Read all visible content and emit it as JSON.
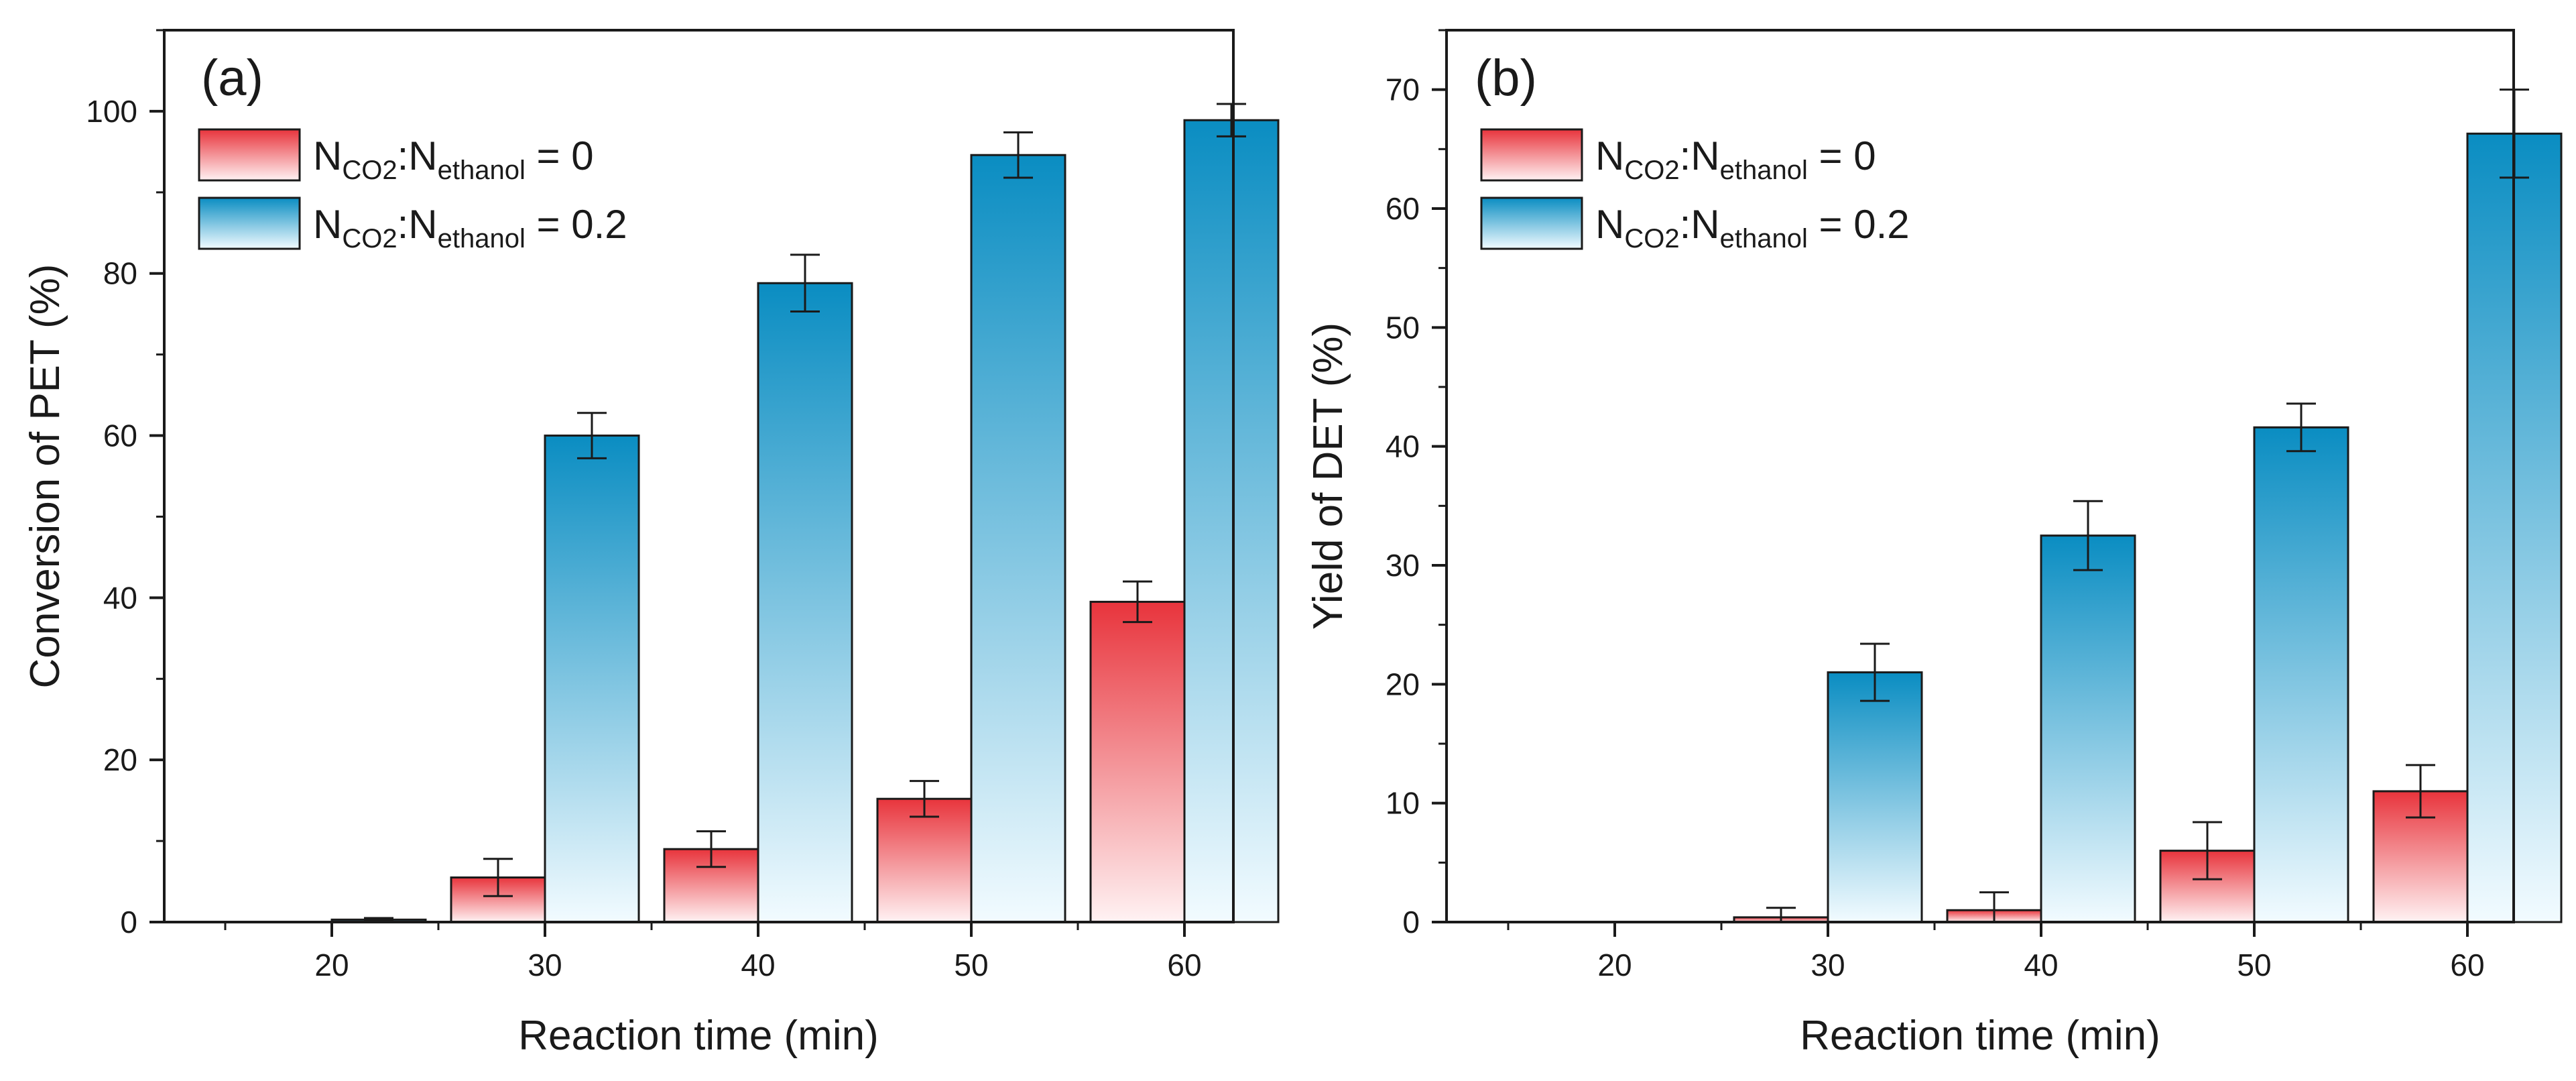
{
  "colors": {
    "red_top": "#e8343c",
    "red_bottom": "#fff2f3",
    "blue_top": "#0a8dc2",
    "blue_bottom": "#f2fbff",
    "axis": "#1a1a1a"
  },
  "chart_data": [
    {
      "type": "bar",
      "panel_label": "(a)",
      "categories": [
        "20",
        "30",
        "40",
        "50",
        "60"
      ],
      "series": [
        {
          "name": "N_CO2:N_ethanol = 0",
          "legend": {
            "main": "N",
            "sub1": "CO2",
            "mid": ":N",
            "sub2": "ethanol",
            "rest": " = 0"
          },
          "color_key": "red",
          "values": [
            0,
            5.5,
            9,
            15.2,
            39.5
          ],
          "errors": [
            0,
            2.3,
            2.2,
            2.2,
            2.5
          ]
        },
        {
          "name": "N_CO2:N_ethanol = 0.2",
          "legend": {
            "main": "N",
            "sub1": "CO2",
            "mid": ":N",
            "sub2": "ethanol",
            "rest": " = 0.2"
          },
          "color_key": "blue",
          "values": [
            0.3,
            60,
            78.8,
            94.6,
            98.9
          ],
          "errors": [
            0.2,
            2.8,
            3.5,
            2.8,
            2
          ]
        }
      ],
      "xlabel": "Reaction time (min)",
      "ylabel": "Conversion of PET (%)",
      "ylim": [
        0,
        110
      ],
      "yticks": [
        0,
        20,
        40,
        60,
        80,
        100
      ],
      "legend_position": "top-left",
      "grid": false
    },
    {
      "type": "bar",
      "panel_label": "(b)",
      "categories": [
        "20",
        "30",
        "40",
        "50",
        "60"
      ],
      "series": [
        {
          "name": "N_CO2:N_ethanol = 0",
          "legend": {
            "main": "N",
            "sub1": "CO2",
            "mid": ":N",
            "sub2": "ethanol",
            "rest": " = 0"
          },
          "color_key": "red",
          "values": [
            0,
            0.4,
            1,
            6,
            11
          ],
          "errors": [
            0,
            0.8,
            1.5,
            2.4,
            2.2
          ]
        },
        {
          "name": "N_CO2:N_ethanol = 0.2",
          "legend": {
            "main": "N",
            "sub1": "CO2",
            "mid": ":N",
            "sub2": "ethanol",
            "rest": " = 0.2"
          },
          "color_key": "blue",
          "values": [
            0,
            21,
            32.5,
            41.6,
            66.3
          ],
          "errors": [
            0,
            2.4,
            2.9,
            2,
            3.7
          ]
        }
      ],
      "xlabel": "Reaction time (min)",
      "ylabel": "Yield of DET (%)",
      "ylim": [
        0,
        75
      ],
      "yticks": [
        0,
        10,
        20,
        30,
        40,
        50,
        60,
        70
      ],
      "legend_position": "top-left",
      "grid": false
    }
  ]
}
